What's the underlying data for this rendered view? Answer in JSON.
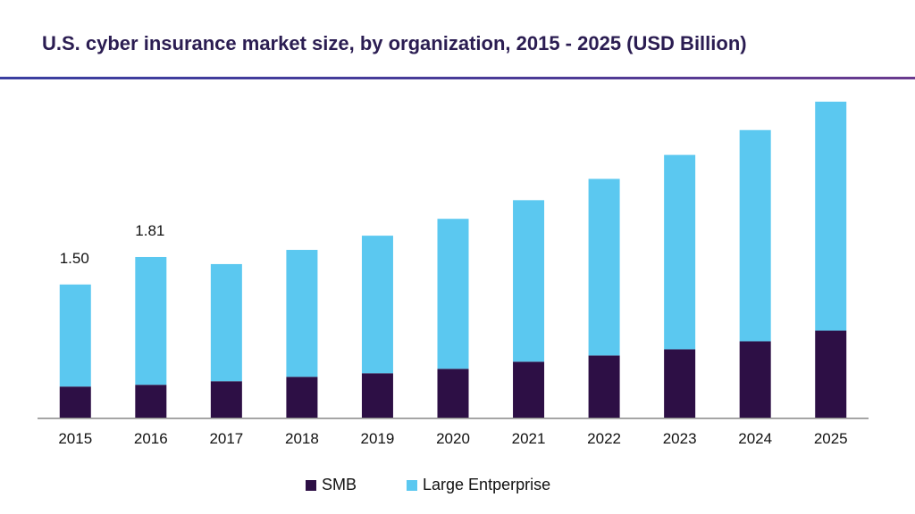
{
  "title": "U.S. cyber insurance market size, by organization, 2015 - 2025 (USD Billion)",
  "chart_data": {
    "type": "bar",
    "stacked": true,
    "categories": [
      "2015",
      "2016",
      "2017",
      "2018",
      "2019",
      "2020",
      "2021",
      "2022",
      "2023",
      "2024",
      "2025"
    ],
    "series": [
      {
        "name": "SMB",
        "color": "#2d0f45",
        "values": [
          0.35,
          0.37,
          0.41,
          0.46,
          0.5,
          0.55,
          0.63,
          0.7,
          0.77,
          0.86,
          0.98
        ]
      },
      {
        "name": "Large Entperprise",
        "color": "#5bc8f0",
        "values": [
          1.15,
          1.44,
          1.32,
          1.43,
          1.55,
          1.69,
          1.82,
          1.99,
          2.19,
          2.38,
          2.58
        ]
      }
    ],
    "data_labels": [
      {
        "category": "2015",
        "text": "1.50"
      },
      {
        "category": "2016",
        "text": "1.81"
      }
    ],
    "ylim": [
      0,
      3.7
    ],
    "grid": false,
    "legend_position": "bottom-center"
  }
}
